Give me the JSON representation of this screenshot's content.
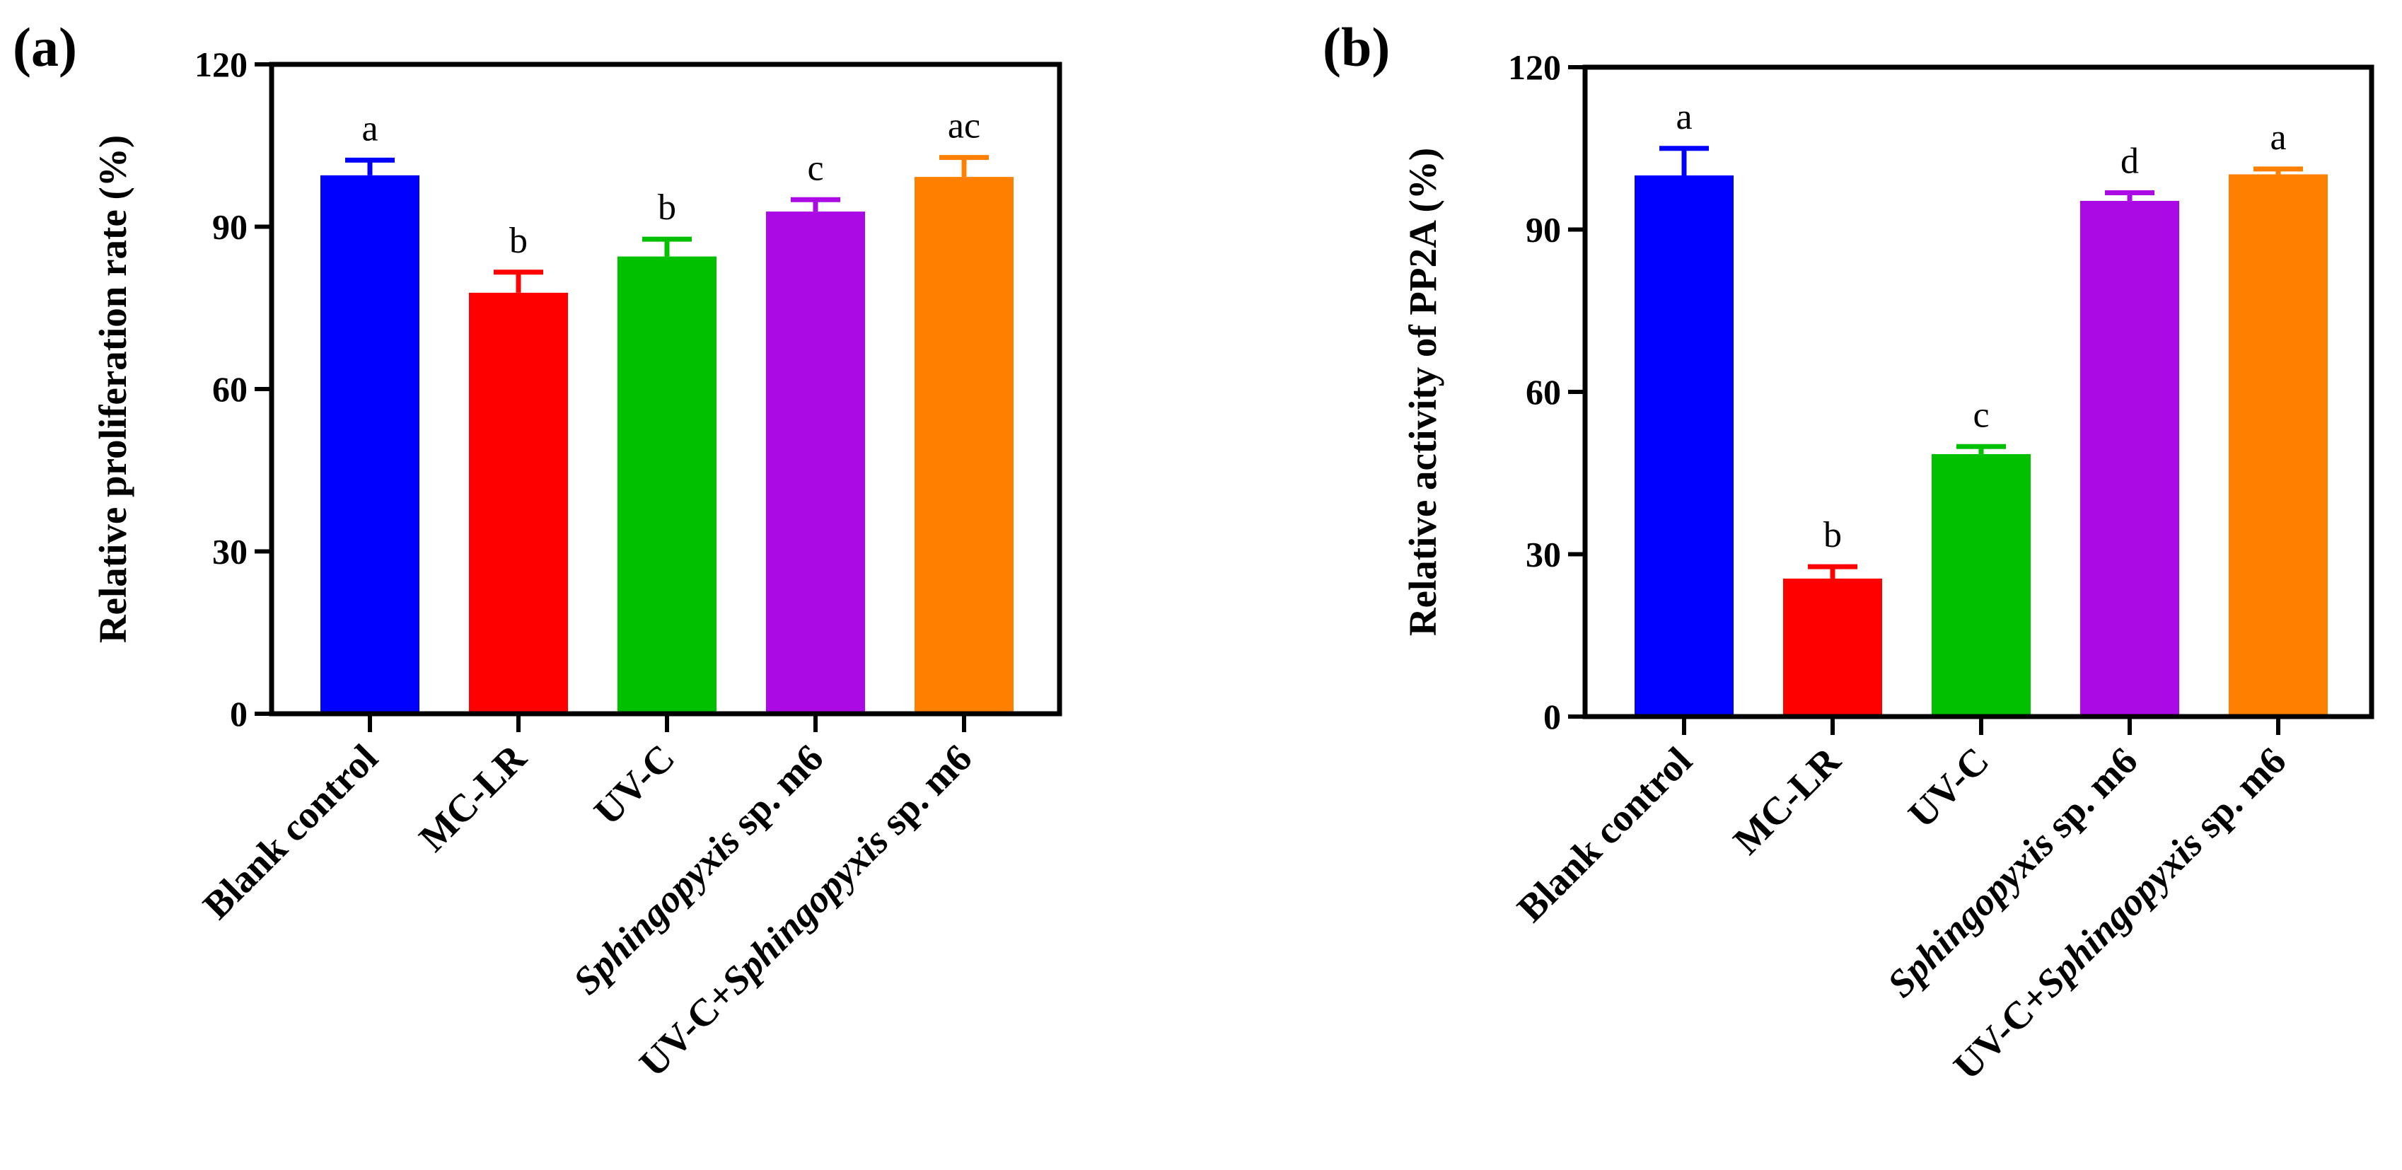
{
  "chart_data": [
    {
      "type": "bar",
      "panel_label": "(a)",
      "ylabel": "Relative proliferation rate (%)",
      "ylim": [
        0,
        120
      ],
      "yticks": [
        "0",
        "30",
        "60",
        "90",
        "120"
      ],
      "categories": [
        [
          {
            "t": "Blank control",
            "i": false
          }
        ],
        [
          {
            "t": "MC-LR",
            "i": false
          }
        ],
        [
          {
            "t": "UV-C",
            "i": false
          }
        ],
        [
          {
            "t": "Sphingopyxis",
            "i": true
          },
          {
            "t": " sp. m6",
            "i": false
          }
        ],
        [
          {
            "t": "UV-C+",
            "i": false
          },
          {
            "t": "Sphingopyxis",
            "i": true
          },
          {
            "t": " sp. m6",
            "i": false
          }
        ]
      ],
      "values": [
        99.5,
        77.8,
        84.5,
        92.8,
        99.2
      ],
      "errors": [
        2.8,
        3.8,
        3.2,
        2.2,
        3.6
      ],
      "significance": [
        "a",
        "b",
        "b",
        "c",
        "ac"
      ],
      "colors": [
        "#0000ff",
        "#ff0000",
        "#00c000",
        "#ab0ae4",
        "#ff8000"
      ],
      "grid": false
    },
    {
      "type": "bar",
      "panel_label": "(b)",
      "ylabel": "Relative activity of PP2A (%)",
      "ylim": [
        0,
        120
      ],
      "yticks": [
        "0",
        "30",
        "60",
        "90",
        "120"
      ],
      "categories": [
        [
          {
            "t": "Blank control",
            "i": false
          }
        ],
        [
          {
            "t": "MC-LR",
            "i": false
          }
        ],
        [
          {
            "t": "UV-C",
            "i": false
          }
        ],
        [
          {
            "t": "Sphingopyxis",
            "i": true
          },
          {
            "t": " sp. m6",
            "i": false
          }
        ],
        [
          {
            "t": "UV-C+",
            "i": false
          },
          {
            "t": "Sphingopyxis",
            "i": true
          },
          {
            "t": " sp. m6",
            "i": false
          }
        ]
      ],
      "values": [
        100.0,
        25.5,
        48.5,
        95.3,
        100.2
      ],
      "errors": [
        5.0,
        2.2,
        1.4,
        1.5,
        1.0
      ],
      "significance": [
        "a",
        "b",
        "c",
        "d",
        "a"
      ],
      "colors": [
        "#0000ff",
        "#ff0000",
        "#00c000",
        "#ab0ae4",
        "#ff8000"
      ],
      "grid": false
    }
  ]
}
